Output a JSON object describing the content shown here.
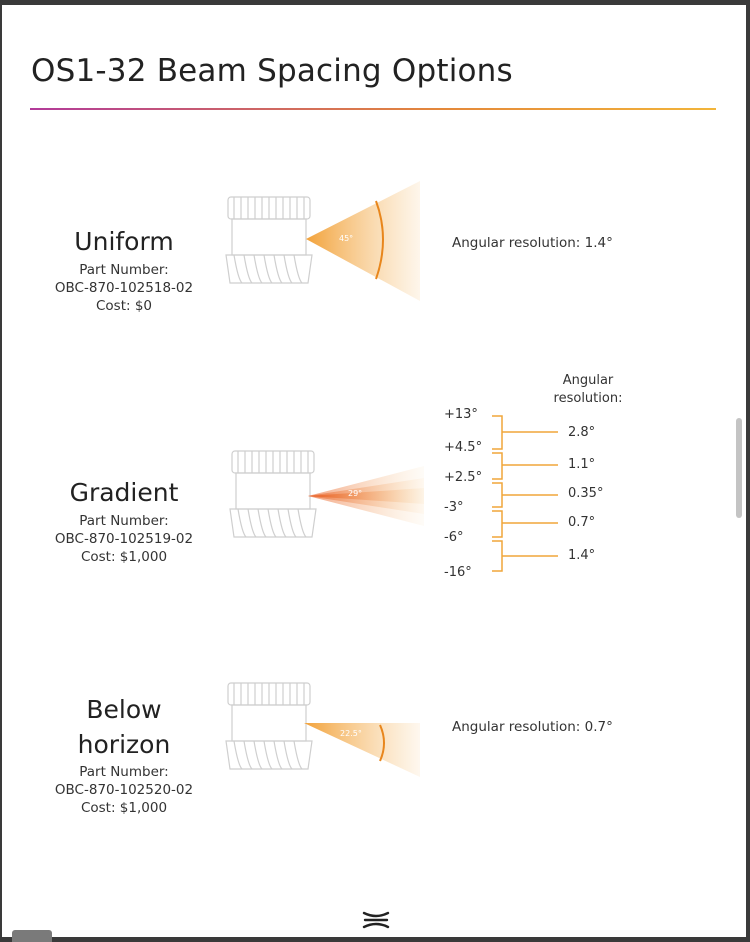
{
  "page": {
    "title": "OS1-32 Beam Spacing Options"
  },
  "options": [
    {
      "name": "Uniform",
      "part_label": "Part Number:",
      "part_number": "OBC-870-102518-02",
      "cost": "Cost: $0",
      "beam_angle": "45°",
      "resolution": "Angular resolution: 1.4°"
    },
    {
      "name": "Gradient",
      "part_label": "Part Number:",
      "part_number": "OBC-870-102519-02",
      "cost": "Cost: $1,000",
      "beam_angle": "29°",
      "resolution_header": "Angular\nresolution:",
      "resolution_header_line1": "Angular",
      "resolution_header_line2": "resolution:",
      "angles": [
        "+13°",
        "+4.5°",
        "+2.5°",
        "-3°",
        "-6°",
        "-16°"
      ],
      "resolutions": [
        "2.8°",
        "1.1°",
        "0.35°",
        "0.7°",
        "1.4°"
      ]
    },
    {
      "name_line1": "Below",
      "name_line2": "horizon",
      "part_label": "Part Number:",
      "part_number": "OBC-870-102520-02",
      "cost": "Cost: $1,000",
      "beam_angle": "22.5°",
      "resolution": "Angular resolution: 0.7°"
    }
  ],
  "colors": {
    "accent_orange": "#f2a23a",
    "deep_orange": "#e8661c",
    "rule_start": "#b23a9a",
    "rule_end": "#f2b53a"
  },
  "icons": {
    "footer_logo": "ouster-logo-icon"
  }
}
